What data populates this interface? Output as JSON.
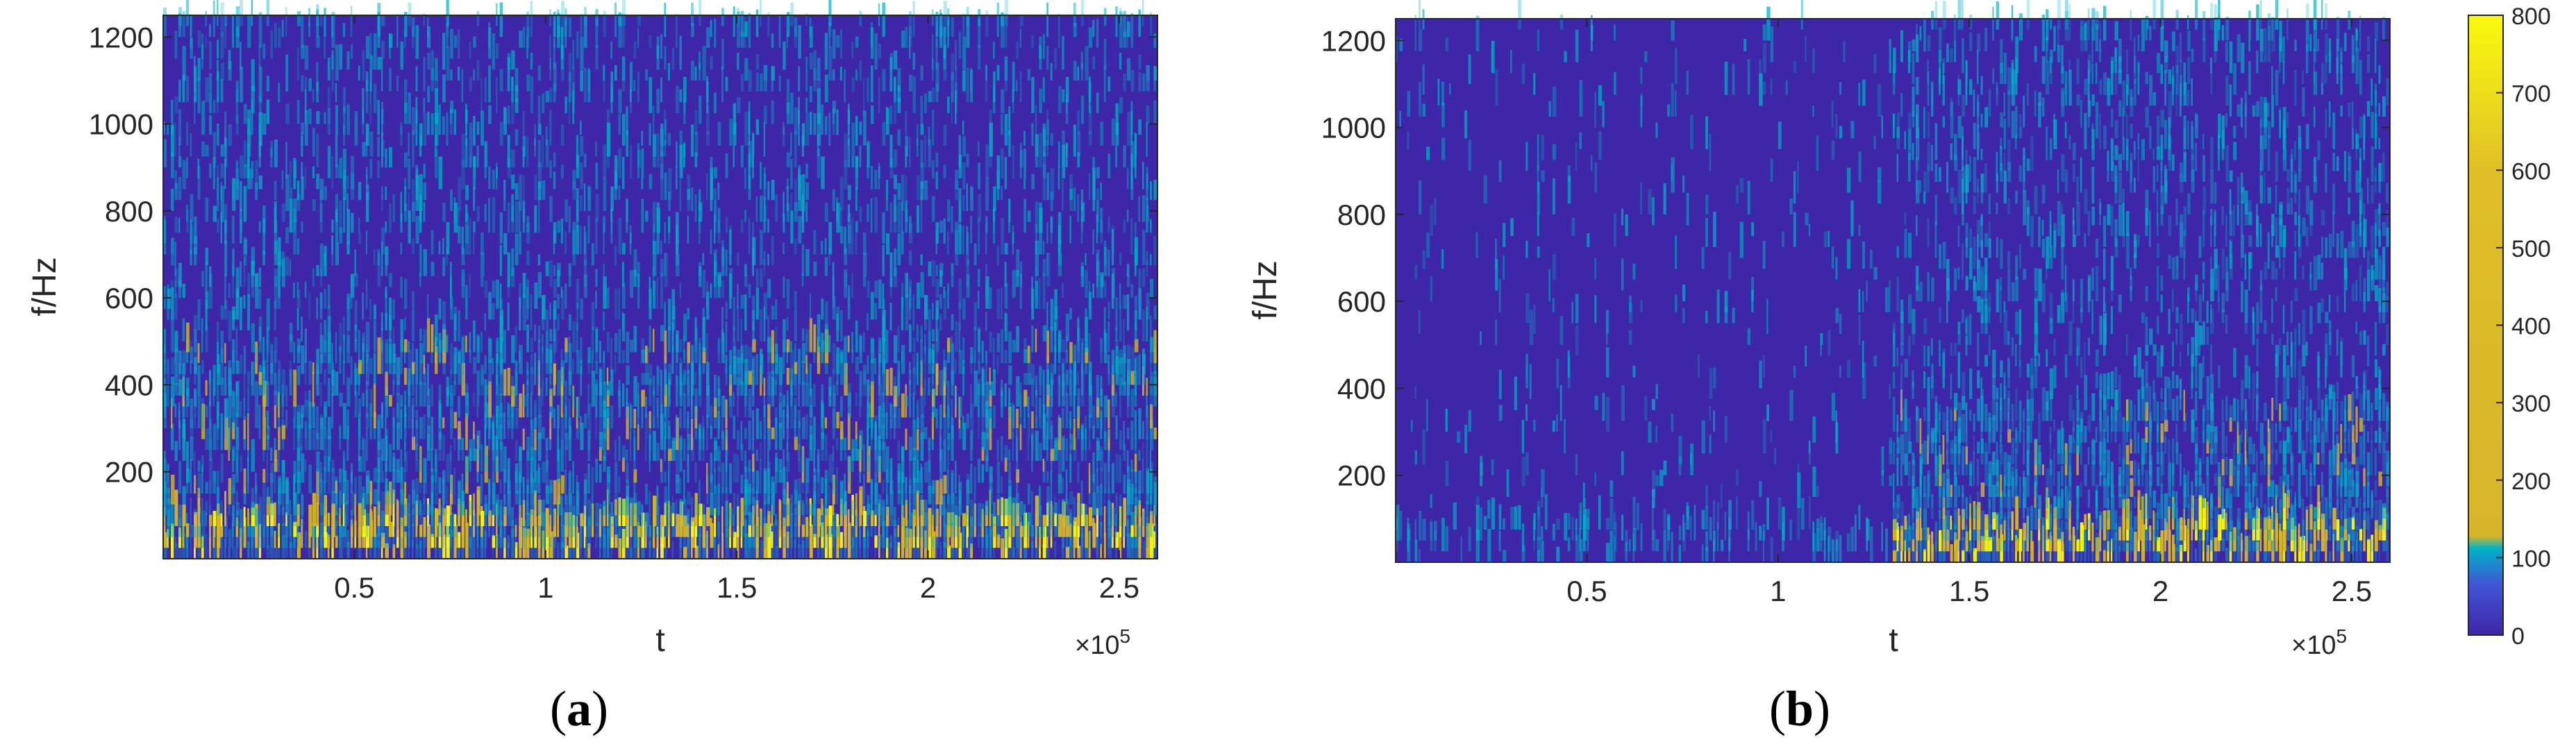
{
  "colors": {
    "c0": "#3e26a8",
    "c1": "#00b3c8",
    "c2": "#d6b52a",
    "c3": "#fafa0f",
    "axis": "#262626",
    "cbar_stops": [
      "#3e26a8",
      "#4253d6",
      "#00b3c8",
      "#d6b52a",
      "#fafa0f"
    ]
  },
  "chart_data": [
    {
      "type": "heatmap",
      "title": "",
      "panel_label": "a",
      "xlabel": "t",
      "ylabel": "f/Hz",
      "x_exponent": "×10",
      "x_exponent_power": "5",
      "xlim": [
        0,
        260000
      ],
      "ylim": [
        0,
        1250
      ],
      "xticks": [
        50000,
        100000,
        150000,
        200000,
        250000
      ],
      "xtick_labels": [
        "0.5",
        "1",
        "1.5",
        "2",
        "2.5"
      ],
      "yticks": [
        200,
        400,
        600,
        800,
        1000,
        1200
      ],
      "ytick_labels": [
        "200",
        "400",
        "600",
        "800",
        "1000",
        "1200"
      ],
      "zlim": [
        0,
        800
      ],
      "intensity_profile": [
        {
          "t_range": [
            0,
            260000
          ],
          "f_range": [
            0,
            100
          ],
          "level": "high"
        },
        {
          "t_range": [
            0,
            260000
          ],
          "f_range": [
            100,
            500
          ],
          "level": "medium"
        },
        {
          "t_range": [
            0,
            260000
          ],
          "f_range": [
            500,
            1250
          ],
          "level": "low"
        }
      ]
    },
    {
      "type": "heatmap",
      "title": "",
      "panel_label": "b",
      "xlabel": "t",
      "ylabel": "f/Hz",
      "x_exponent": "×10",
      "x_exponent_power": "5",
      "xlim": [
        0,
        260000
      ],
      "ylim": [
        0,
        1250
      ],
      "xticks": [
        50000,
        100000,
        150000,
        200000,
        250000
      ],
      "xtick_labels": [
        "0.5",
        "1",
        "1.5",
        "2",
        "2.5"
      ],
      "yticks": [
        200,
        400,
        600,
        800,
        1000,
        1200
      ],
      "ytick_labels": [
        "200",
        "400",
        "600",
        "800",
        "1000",
        "1200"
      ],
      "zlim": [
        0,
        800
      ],
      "intensity_profile": [
        {
          "t_range": [
            0,
            130000
          ],
          "f_range": [
            0,
            80
          ],
          "level": "low-medium"
        },
        {
          "t_range": [
            0,
            130000
          ],
          "f_range": [
            80,
            1250
          ],
          "level": "very low"
        },
        {
          "t_range": [
            130000,
            260000
          ],
          "f_range": [
            0,
            100
          ],
          "level": "high"
        },
        {
          "t_range": [
            130000,
            260000
          ],
          "f_range": [
            100,
            350
          ],
          "level": "medium"
        },
        {
          "t_range": [
            130000,
            260000
          ],
          "f_range": [
            350,
            1250
          ],
          "level": "low"
        }
      ]
    }
  ],
  "colorbar": {
    "range": [
      0,
      800
    ],
    "ticks": [
      0,
      100,
      200,
      300,
      400,
      500,
      600,
      700,
      800
    ],
    "tick_labels": [
      "0",
      "100",
      "200",
      "300",
      "400",
      "500",
      "600",
      "700",
      "800"
    ]
  },
  "captions": {
    "a": {
      "open": "(",
      "letter": "a",
      "close": ")"
    },
    "b": {
      "open": "(",
      "letter": "b",
      "close": ")"
    }
  }
}
